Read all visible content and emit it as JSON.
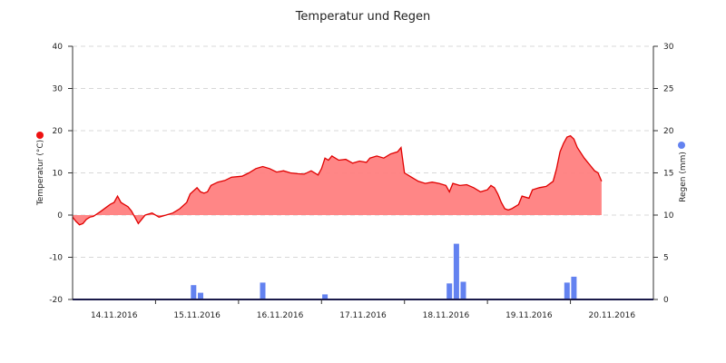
{
  "chart_data": {
    "type": "area",
    "title": "Temperatur und Regen",
    "ylabel_left": "Temperatur (°C)",
    "ylabel_right": "Regen (mm)",
    "ylim_left": [
      -20,
      40
    ],
    "ylim_right": [
      0,
      30
    ],
    "yticks_left": [
      -20,
      -10,
      0,
      10,
      20,
      30,
      40
    ],
    "yticks_right": [
      0,
      5,
      10,
      15,
      20,
      25,
      30
    ],
    "grid": true,
    "x_start": "13.11.2016 24:00",
    "x_categories": [
      "14.11.2016",
      "15.11.2016",
      "16.11.2016",
      "17.11.2016",
      "18.11.2016",
      "19.11.2016",
      "20.11.2016"
    ],
    "colors": {
      "temperature_fill": "#ff8080",
      "temperature_line": "#e00000",
      "rain_bar": "#6382f0",
      "left_legend_dot": "#ee1111",
      "right_legend_dot": "#6382f0",
      "axis": "#1a1a4a",
      "grid": "#d8d8d8"
    },
    "series": [
      {
        "type": "area",
        "axis": "left",
        "unit": "°C",
        "points": [
          [
            "13.11.2016 24:00",
            -0.5
          ],
          [
            "14.11.2016 01:00",
            -1.5
          ],
          [
            "14.11.2016 02:00",
            -2.3
          ],
          [
            "14.11.2016 03:00",
            -2.0
          ],
          [
            "14.11.2016 04:00",
            -1.0
          ],
          [
            "14.11.2016 05:00",
            -0.5
          ],
          [
            "14.11.2016 06:00",
            -0.3
          ],
          [
            "14.11.2016 08:00",
            0.8
          ],
          [
            "14.11.2016 10:00",
            2.0
          ],
          [
            "14.11.2016 11:00",
            2.6
          ],
          [
            "14.11.2016 12:00",
            3.0
          ],
          [
            "14.11.2016 13:00",
            4.5
          ],
          [
            "14.11.2016 14:00",
            3.0
          ],
          [
            "14.11.2016 15:00",
            2.5
          ],
          [
            "14.11.2016 16:00",
            2.0
          ],
          [
            "14.11.2016 17:00",
            1.0
          ],
          [
            "14.11.2016 18:00",
            -0.5
          ],
          [
            "14.11.2016 19:00",
            -2.0
          ],
          [
            "14.11.2016 20:00",
            -1.0
          ],
          [
            "14.11.2016 21:00",
            0.0
          ],
          [
            "14.11.2016 23:00",
            0.5
          ],
          [
            "15.11.2016 01:00",
            -0.5
          ],
          [
            "15.11.2016 03:00",
            0.0
          ],
          [
            "15.11.2016 05:00",
            0.5
          ],
          [
            "15.11.2016 07:00",
            1.5
          ],
          [
            "15.11.2016 09:00",
            3.0
          ],
          [
            "15.11.2016 10:00",
            5.0
          ],
          [
            "15.11.2016 12:00",
            6.5
          ],
          [
            "15.11.2016 13:00",
            5.5
          ],
          [
            "15.11.2016 14:00",
            5.2
          ],
          [
            "15.11.2016 15:00",
            5.5
          ],
          [
            "15.11.2016 16:00",
            7.0
          ],
          [
            "15.11.2016 18:00",
            7.8
          ],
          [
            "15.11.2016 20:00",
            8.2
          ],
          [
            "15.11.2016 22:00",
            9.0
          ],
          [
            "16.11.2016 01:00",
            9.2
          ],
          [
            "16.11.2016 03:00",
            10.0
          ],
          [
            "16.11.2016 05:00",
            11.0
          ],
          [
            "16.11.2016 07:00",
            11.5
          ],
          [
            "16.11.2016 09:00",
            11.0
          ],
          [
            "16.11.2016 11:00",
            10.2
          ],
          [
            "16.11.2016 13:00",
            10.5
          ],
          [
            "16.11.2016 15:00",
            10.0
          ],
          [
            "16.11.2016 17:00",
            9.8
          ],
          [
            "16.11.2016 19:00",
            9.7
          ],
          [
            "16.11.2016 21:00",
            10.5
          ],
          [
            "16.11.2016 23:00",
            9.5
          ],
          [
            "17.11.2016 00:00",
            11.0
          ],
          [
            "17.11.2016 01:00",
            13.5
          ],
          [
            "17.11.2016 02:00",
            13.0
          ],
          [
            "17.11.2016 03:00",
            14.0
          ],
          [
            "17.11.2016 05:00",
            13.0
          ],
          [
            "17.11.2016 07:00",
            13.2
          ],
          [
            "17.11.2016 09:00",
            12.3
          ],
          [
            "17.11.2016 11:00",
            12.8
          ],
          [
            "17.11.2016 13:00",
            12.5
          ],
          [
            "17.11.2016 14:00",
            13.5
          ],
          [
            "17.11.2016 16:00",
            14.0
          ],
          [
            "17.11.2016 18:00",
            13.5
          ],
          [
            "17.11.2016 20:00",
            14.5
          ],
          [
            "17.11.2016 22:00",
            15.0
          ],
          [
            "17.11.2016 23:00",
            16.0
          ],
          [
            "18.11.2016 00:00",
            10.0
          ],
          [
            "18.11.2016 02:00",
            9.0
          ],
          [
            "18.11.2016 04:00",
            8.0
          ],
          [
            "18.11.2016 06:00",
            7.5
          ],
          [
            "18.11.2016 08:00",
            7.8
          ],
          [
            "18.11.2016 10:00",
            7.5
          ],
          [
            "18.11.2016 12:00",
            7.0
          ],
          [
            "18.11.2016 13:00",
            5.5
          ],
          [
            "18.11.2016 14:00",
            7.5
          ],
          [
            "18.11.2016 16:00",
            7.0
          ],
          [
            "18.11.2016 18:00",
            7.2
          ],
          [
            "18.11.2016 20:00",
            6.5
          ],
          [
            "18.11.2016 22:00",
            5.5
          ],
          [
            "19.11.2016 00:00",
            6.0
          ],
          [
            "19.11.2016 01:00",
            7.0
          ],
          [
            "19.11.2016 02:00",
            6.5
          ],
          [
            "19.11.2016 03:00",
            5.0
          ],
          [
            "19.11.2016 04:00",
            3.0
          ],
          [
            "19.11.2016 05:00",
            1.5
          ],
          [
            "19.11.2016 06:00",
            1.2
          ],
          [
            "19.11.2016 07:00",
            1.5
          ],
          [
            "19.11.2016 08:00",
            2.0
          ],
          [
            "19.11.2016 09:00",
            2.5
          ],
          [
            "19.11.2016 10:00",
            4.5
          ],
          [
            "19.11.2016 12:00",
            4.0
          ],
          [
            "19.11.2016 13:00",
            6.0
          ],
          [
            "19.11.2016 15:00",
            6.5
          ],
          [
            "19.11.2016 17:00",
            6.8
          ],
          [
            "19.11.2016 19:00",
            8.0
          ],
          [
            "19.11.2016 20:00",
            11.0
          ],
          [
            "19.11.2016 21:00",
            15.0
          ],
          [
            "19.11.2016 22:00",
            17.0
          ],
          [
            "19.11.2016 23:00",
            18.5
          ],
          [
            "20.11.2016 00:00",
            18.8
          ],
          [
            "20.11.2016 01:00",
            18.0
          ],
          [
            "20.11.2016 02:00",
            16.0
          ],
          [
            "20.11.2016 04:00",
            13.5
          ],
          [
            "20.11.2016 06:00",
            11.5
          ],
          [
            "20.11.2016 07:00",
            10.5
          ],
          [
            "20.11.2016 08:00",
            10.0
          ],
          [
            "20.11.2016 09:00",
            8.0
          ]
        ]
      },
      {
        "type": "bar",
        "axis": "right",
        "unit": "mm",
        "points": [
          [
            "15.11.2016 11:00",
            1.7
          ],
          [
            "15.11.2016 13:00",
            0.8
          ],
          [
            "16.11.2016 07:00",
            2.0
          ],
          [
            "17.11.2016 01:00",
            0.6
          ],
          [
            "18.11.2016 13:00",
            1.9
          ],
          [
            "18.11.2016 15:00",
            6.6
          ],
          [
            "18.11.2016 17:00",
            2.1
          ],
          [
            "19.11.2016 23:00",
            2.0
          ],
          [
            "20.11.2016 01:00",
            2.7
          ]
        ]
      }
    ]
  }
}
